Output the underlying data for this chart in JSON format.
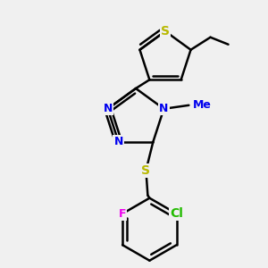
{
  "bg_color": "#f0f0f0",
  "line_color": "#000000",
  "bond_width": 1.8,
  "font_size": 9,
  "atom_colors": {
    "S": "#b8b800",
    "N": "#0000ee",
    "F": "#ee00ee",
    "Cl": "#22bb00",
    "C": "#000000"
  },
  "scale": 1.0
}
